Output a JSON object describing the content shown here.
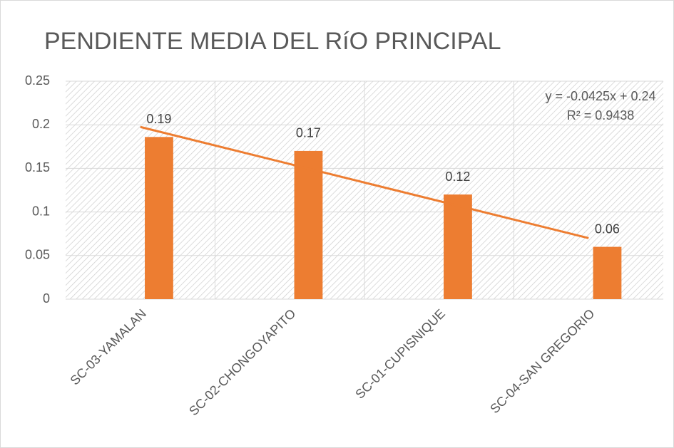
{
  "chart_data": {
    "type": "bar",
    "title": "PENDIENTE MEDIA DEL RíO PRINCIPAL",
    "categories": [
      "SC-03-YAMALAN",
      "SC-02-CHONGOYAPITO",
      "SC-01-CUPISNIQUE",
      "SC-04-SAN GREGORIO"
    ],
    "values": [
      0.186,
      0.17,
      0.12,
      0.06
    ],
    "value_labels": [
      "0.19",
      "0.17",
      "0.12",
      "0.06"
    ],
    "color": "#ed7d31",
    "ylim": [
      0,
      0.25
    ],
    "yticks": [
      0,
      0.05,
      0.1,
      0.15,
      0.2,
      0.25
    ],
    "grid": true,
    "trendline": {
      "equation": "y = -0.0425x + 0.24",
      "r2": "R² = 0.9438",
      "slope": -0.0425,
      "intercept": 0.24,
      "color": "#ed7d31"
    }
  }
}
